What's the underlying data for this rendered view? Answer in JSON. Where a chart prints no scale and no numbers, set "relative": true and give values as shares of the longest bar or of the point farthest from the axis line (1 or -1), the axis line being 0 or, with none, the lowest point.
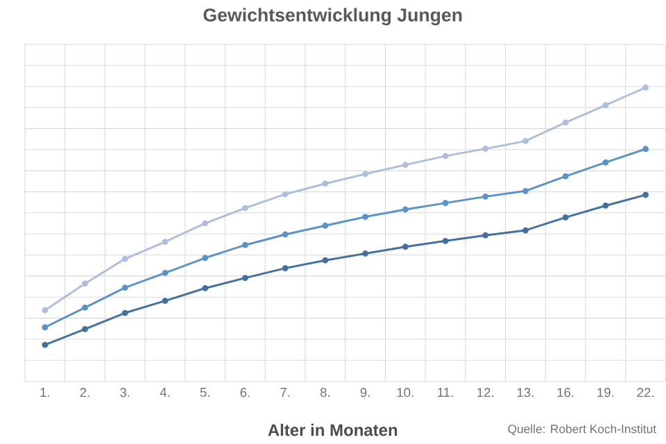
{
  "chart_data": {
    "type": "line",
    "title": "Gewichtsentwicklung Jungen",
    "xlabel": "Alter in Monaten",
    "annotations": [
      "Quelle: Robert Koch-Institut"
    ],
    "categories": [
      "1.",
      "2.",
      "3.",
      "4.",
      "5.",
      "6.",
      "7.",
      "8.",
      "9.",
      "10.",
      "11.",
      "12.",
      "13.",
      "16.",
      "19.",
      "22."
    ],
    "relative": true,
    "grid": true,
    "marker": "circle",
    "line_style": "solid",
    "series": [
      {
        "color": "#aebfdb",
        "values": [
          0.242,
          0.333,
          0.417,
          0.475,
          0.538,
          0.59,
          0.637,
          0.673,
          0.706,
          0.737,
          0.767,
          0.792,
          0.818,
          0.881,
          0.94,
          1.0
        ]
      },
      {
        "color": "#5b93c7",
        "values": [
          0.184,
          0.251,
          0.319,
          0.369,
          0.42,
          0.464,
          0.5,
          0.53,
          0.56,
          0.585,
          0.607,
          0.629,
          0.648,
          0.698,
          0.745,
          0.791
        ]
      },
      {
        "color": "#43709f",
        "values": [
          0.124,
          0.178,
          0.233,
          0.274,
          0.317,
          0.352,
          0.385,
          0.412,
          0.435,
          0.458,
          0.478,
          0.497,
          0.514,
          0.558,
          0.598,
          0.635
        ]
      }
    ]
  }
}
